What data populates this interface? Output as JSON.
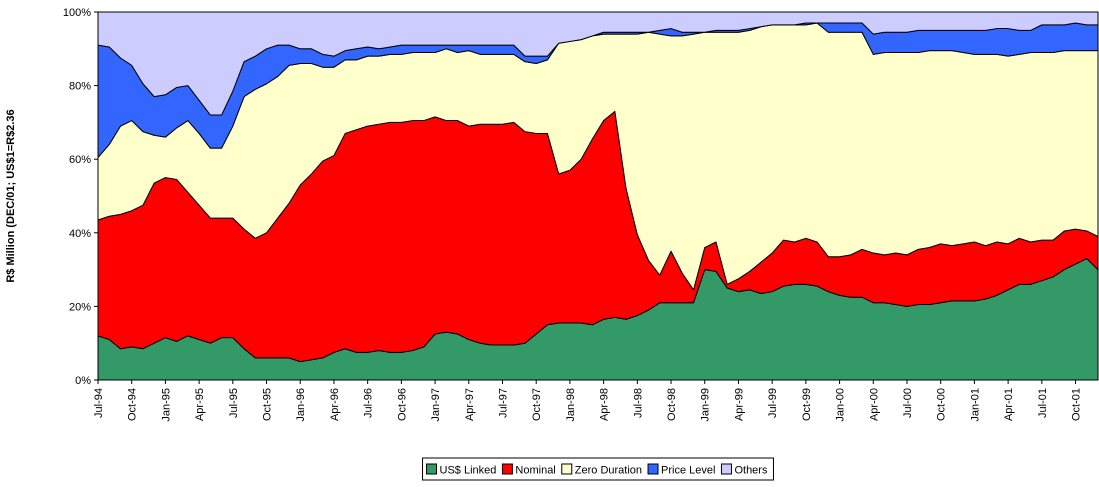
{
  "chart_data": {
    "type": "stacked_area",
    "y_label": "R$ Million (DEC/01; US$1=R$2.36",
    "categories": [
      "Jul-94",
      null,
      null,
      "Oct-94",
      null,
      null,
      "Jan-95",
      null,
      null,
      "Apr-95",
      null,
      null,
      "Jul-95",
      null,
      null,
      "Oct-95",
      null,
      null,
      "Jan-96",
      null,
      null,
      "Apr-96",
      null,
      null,
      "Jul-96",
      null,
      null,
      "Oct-96",
      null,
      null,
      "Jan-97",
      null,
      null,
      "Apr-97",
      null,
      null,
      "Jul-97",
      null,
      null,
      "Oct-97",
      null,
      null,
      "Jan-98",
      null,
      null,
      "Apr-98",
      null,
      null,
      "Jul-98",
      null,
      null,
      "Oct-98",
      null,
      null,
      "Jan-99",
      null,
      null,
      "Apr-99",
      null,
      null,
      "Jul-99",
      null,
      null,
      "Oct-99",
      null,
      null,
      "Jan-00",
      null,
      null,
      "Apr-00",
      null,
      null,
      "Jul-00",
      null,
      null,
      "Oct-00",
      null,
      null,
      "Jan-01",
      null,
      null,
      "Apr-01",
      null,
      null,
      "Jul-01",
      null,
      null,
      "Oct-01",
      null,
      null
    ],
    "series": [
      {
        "name": "US$ Linked",
        "color": "#339966",
        "values": [
          12,
          11,
          8.5,
          9,
          8.5,
          10,
          11.5,
          10.5,
          12,
          11,
          10,
          11.5,
          11.5,
          8.5,
          6,
          6,
          6,
          6,
          5,
          5.5,
          6,
          7.5,
          8.5,
          7.5,
          7.5,
          8,
          7.5,
          7.5,
          8,
          9,
          12.5,
          13,
          12.5,
          11,
          10,
          9.5,
          9.5,
          9.5,
          10,
          12.5,
          15,
          15.5,
          15.5,
          15.5,
          15,
          16.5,
          17,
          16.5,
          17.5,
          19,
          21,
          21,
          21,
          21,
          30,
          29.5,
          25,
          24,
          24.5,
          23.5,
          24,
          25.5,
          26,
          26,
          25.5,
          24,
          23,
          22.5,
          22.5,
          21,
          21,
          20.5,
          20,
          20.5,
          20.5,
          21,
          21.5,
          21.5,
          21.5,
          22,
          23,
          24.5,
          26,
          26,
          27,
          28,
          30,
          31.5,
          33,
          30
        ]
      },
      {
        "name": "Nominal",
        "color": "#ff0000",
        "values": [
          31.5,
          33.5,
          36.5,
          37,
          39,
          43.5,
          43.5,
          44,
          39,
          36.5,
          34,
          32.5,
          32.5,
          32.5,
          32.5,
          34,
          38,
          42,
          48,
          50.5,
          53.5,
          53.5,
          58.5,
          60.5,
          61.5,
          61.5,
          62.5,
          62.5,
          62.5,
          61.5,
          59,
          57.5,
          58,
          58,
          59.5,
          60,
          60,
          60.5,
          57.5,
          54.5,
          52,
          40.5,
          41.5,
          44.5,
          50.5,
          54,
          56,
          35.5,
          22,
          13.5,
          7.5,
          14,
          8,
          3.5,
          6,
          8,
          1,
          3.5,
          5,
          8.5,
          10.5,
          12.5,
          11.5,
          12.5,
          12,
          9.5,
          10.5,
          11.5,
          13,
          13.5,
          13,
          14,
          14,
          15,
          15.5,
          16,
          15,
          15.5,
          16,
          14.5,
          14.5,
          12.5,
          12.5,
          11.5,
          11,
          10,
          10.5,
          9.5,
          7.5,
          9
        ]
      },
      {
        "name": "Zero Duration",
        "color": "#ffffcc",
        "values": [
          17,
          19.5,
          24,
          24.5,
          20,
          13,
          11,
          14,
          19.5,
          19.5,
          19,
          19,
          25,
          36,
          40.5,
          40.5,
          38.5,
          37.5,
          33,
          30,
          25.5,
          24,
          20,
          19,
          19,
          18.5,
          18.5,
          18.5,
          18.5,
          18.5,
          17.5,
          19.5,
          18.5,
          20.5,
          19,
          19,
          19,
          18.5,
          19,
          19,
          20,
          35.5,
          35,
          32.5,
          28,
          23.5,
          21,
          42,
          54.5,
          62,
          65.5,
          58.5,
          64.5,
          69.5,
          58.5,
          57,
          68.5,
          67,
          65.5,
          64,
          62,
          58.5,
          59,
          58,
          59.5,
          61,
          61,
          60.5,
          59,
          54,
          55,
          54.5,
          55,
          53.5,
          53.5,
          52.5,
          53,
          52,
          51,
          52,
          51,
          51,
          50,
          51.5,
          51,
          51,
          49,
          48.5,
          49,
          50.5
        ]
      },
      {
        "name": "Price Level",
        "color": "#3366ff",
        "values": [
          30.5,
          26.5,
          18.5,
          15,
          13,
          10.5,
          11.5,
          11,
          9.5,
          9,
          9,
          9,
          9.5,
          9.5,
          9,
          9.5,
          8.5,
          5.5,
          4,
          4,
          3.5,
          3,
          2.5,
          3,
          2.5,
          2,
          2,
          2.5,
          2,
          2,
          2,
          1,
          2,
          1.5,
          2.5,
          2.5,
          2.5,
          2.5,
          1.5,
          2,
          1,
          0,
          0,
          0,
          0,
          0.5,
          0.5,
          0.5,
          0.5,
          0,
          1,
          2,
          1,
          0.5,
          0,
          0.5,
          0.5,
          0.5,
          0.5,
          0,
          0,
          0,
          0,
          0.5,
          0,
          2.5,
          2.5,
          2.5,
          2.5,
          5.5,
          5.5,
          5.5,
          5.5,
          6,
          5.5,
          5.5,
          5.5,
          6,
          6.5,
          6.5,
          7,
          7.5,
          6.5,
          6,
          7.5,
          7.5,
          7,
          7.5,
          7,
          7
        ]
      },
      {
        "name": "Others",
        "color": "#ccccff",
        "values": [
          9,
          9.5,
          12.5,
          14.5,
          19.5,
          23,
          22.5,
          20.5,
          20,
          24,
          28,
          28,
          21.5,
          13.5,
          12,
          10,
          9,
          9,
          10,
          10,
          11.5,
          12,
          10.5,
          10,
          9.5,
          10,
          9.5,
          9,
          9,
          9,
          9,
          9,
          9,
          9,
          9,
          9,
          9,
          9,
          12,
          12,
          12,
          8.5,
          8,
          7.5,
          6.5,
          5.5,
          5.5,
          5.5,
          5.5,
          5.5,
          5,
          4.5,
          5.5,
          5.5,
          5.5,
          5,
          5,
          5,
          4.5,
          4,
          3.5,
          3.5,
          3.5,
          3,
          3,
          3,
          3,
          3,
          3,
          6,
          5.5,
          5.5,
          5.5,
          5,
          5,
          5,
          5,
          5,
          5,
          5,
          4.5,
          4.5,
          5,
          5,
          3.5,
          3.5,
          3.5,
          3,
          3.5,
          3.5
        ]
      }
    ],
    "ylim": [
      0,
      100
    ],
    "yticks": [
      {
        "value": 0,
        "label": "0%"
      },
      {
        "value": 20,
        "label": "20%"
      },
      {
        "value": 40,
        "label": "40%"
      },
      {
        "value": 60,
        "label": "60%"
      },
      {
        "value": 80,
        "label": "80%"
      },
      {
        "value": 100,
        "label": "100%"
      }
    ],
    "grid": false,
    "legend": "bottom"
  }
}
